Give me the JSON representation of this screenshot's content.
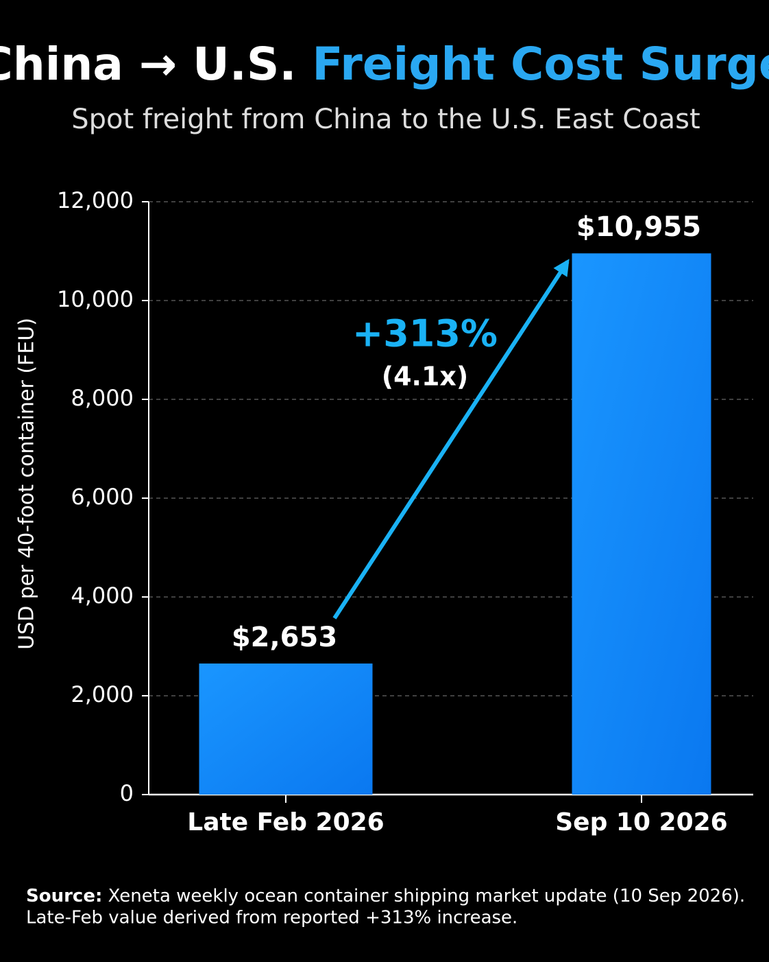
{
  "chart_data": {
    "type": "bar",
    "title_parts": [
      {
        "text": "China → U.S.",
        "color": "#ffffff"
      },
      {
        "text": "Freight Cost Surge",
        "color": "#2aa8f2"
      }
    ],
    "subtitle": "Spot freight from China to the U.S. East Coast",
    "y_label": "USD per 40-foot container (FEU)",
    "categories": [
      "Late Feb 2026",
      "Sep 10 2026"
    ],
    "values": [
      2653,
      10955
    ],
    "value_labels": [
      "$2,653",
      "$10,955"
    ],
    "color": "#1a8cff",
    "ylim": [
      0,
      12000
    ],
    "yticks": [
      0,
      {
        "value": 2000,
        "label": "2,000"
      },
      {
        "value": 4000,
        "label": "4,000"
      },
      {
        "value": 6000,
        "label": "6,000"
      },
      {
        "value": 8000,
        "label": "8,000"
      },
      {
        "value": 10000,
        "label": "10,000"
      },
      {
        "value": 12000,
        "label": "12,000"
      }
    ],
    "grid": true,
    "annotation": {
      "text": "+313%",
      "subtext": "(4.1x)",
      "color": "#1ab2f5"
    },
    "source_label": "Source:",
    "source_lines": [
      "Xeneta weekly ocean container shipping market update (10 Sep 2026).",
      "Late-Feb value derived from reported +313% increase."
    ]
  }
}
